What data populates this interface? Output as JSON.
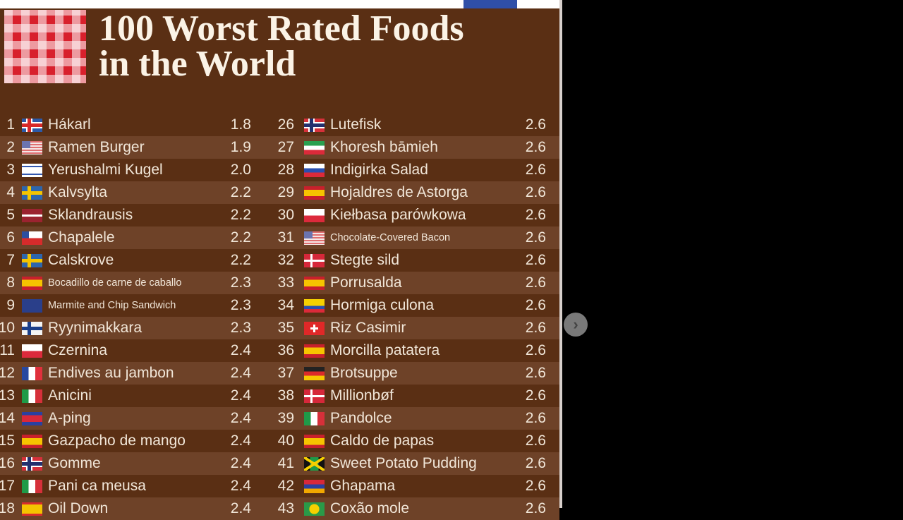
{
  "title_line1": "100 Worst Rated Foods",
  "title_line2": "in the World",
  "left": [
    {
      "rank": "1",
      "flag": "is",
      "name": "Hákarl",
      "score": "1.8"
    },
    {
      "rank": "2",
      "flag": "us",
      "name": "Ramen Burger",
      "score": "1.9"
    },
    {
      "rank": "3",
      "flag": "il",
      "name": "Yerushalmi Kugel",
      "score": "2.0"
    },
    {
      "rank": "4",
      "flag": "se",
      "name": "Kalvsylta",
      "score": "2.2"
    },
    {
      "rank": "5",
      "flag": "lv",
      "name": "Sklandrausis",
      "score": "2.2"
    },
    {
      "rank": "6",
      "flag": "cl",
      "name": "Chapalele",
      "score": "2.2"
    },
    {
      "rank": "7",
      "flag": "se",
      "name": "Calskrove",
      "score": "2.2"
    },
    {
      "rank": "8",
      "flag": "es",
      "name": "Bocadillo de carne de caballo",
      "score": "2.3",
      "small": true
    },
    {
      "rank": "9",
      "flag": "nz",
      "name": "Marmite and Chip Sandwich",
      "score": "2.3",
      "small": true
    },
    {
      "rank": "10",
      "flag": "fi",
      "name": "Ryynimakkara",
      "score": "2.3"
    },
    {
      "rank": "11",
      "flag": "pl",
      "name": "Czernina",
      "score": "2.4"
    },
    {
      "rank": "12",
      "flag": "fr",
      "name": "Endives au jambon",
      "score": "2.4"
    },
    {
      "rank": "13",
      "flag": "it",
      "name": "Anicini",
      "score": "2.4"
    },
    {
      "rank": "14",
      "flag": "kh",
      "name": "A-ping",
      "score": "2.4"
    },
    {
      "rank": "15",
      "flag": "es",
      "name": "Gazpacho de mango",
      "score": "2.4"
    },
    {
      "rank": "16",
      "flag": "no",
      "name": "Gomme",
      "score": "2.4"
    },
    {
      "rank": "17",
      "flag": "it",
      "name": "Pani ca meusa",
      "score": "2.4"
    },
    {
      "rank": "18",
      "flag": "gd",
      "name": "Oil Down",
      "score": "2.4"
    }
  ],
  "right": [
    {
      "rank": "26",
      "flag": "no",
      "name": "Lutefisk",
      "score": "2.6"
    },
    {
      "rank": "27",
      "flag": "ir",
      "name": "Khoresh bāmieh",
      "score": "2.6"
    },
    {
      "rank": "28",
      "flag": "ru",
      "name": "Indigirka Salad",
      "score": "2.6"
    },
    {
      "rank": "29",
      "flag": "es",
      "name": "Hojaldres de Astorga",
      "score": "2.6"
    },
    {
      "rank": "30",
      "flag": "pl",
      "name": "Kiełbasa parówkowa",
      "score": "2.6"
    },
    {
      "rank": "31",
      "flag": "us",
      "name": "Chocolate-Covered Bacon",
      "score": "2.6",
      "small": true
    },
    {
      "rank": "32",
      "flag": "dk",
      "name": "Stegte sild",
      "score": "2.6"
    },
    {
      "rank": "33",
      "flag": "es",
      "name": "Porrusalda",
      "score": "2.6"
    },
    {
      "rank": "34",
      "flag": "co",
      "name": "Hormiga culona",
      "score": "2.6"
    },
    {
      "rank": "35",
      "flag": "ch",
      "name": "Riz Casimir",
      "score": "2.6"
    },
    {
      "rank": "36",
      "flag": "es",
      "name": "Morcilla patatera",
      "score": "2.6"
    },
    {
      "rank": "37",
      "flag": "de",
      "name": "Brotsuppe",
      "score": "2.6"
    },
    {
      "rank": "38",
      "flag": "dk",
      "name": "Millionbøf",
      "score": "2.6"
    },
    {
      "rank": "39",
      "flag": "it",
      "name": "Pandolce",
      "score": "2.6"
    },
    {
      "rank": "40",
      "flag": "es",
      "name": "Caldo de papas",
      "score": "2.6"
    },
    {
      "rank": "41",
      "flag": "jm",
      "name": "Sweet Potato Pudding",
      "score": "2.6"
    },
    {
      "rank": "42",
      "flag": "am",
      "name": "Ghapama",
      "score": "2.6"
    },
    {
      "rank": "43",
      "flag": "br",
      "name": "Coxão mole",
      "score": "2.6"
    }
  ],
  "scroll_icon": "chevron-right-icon"
}
